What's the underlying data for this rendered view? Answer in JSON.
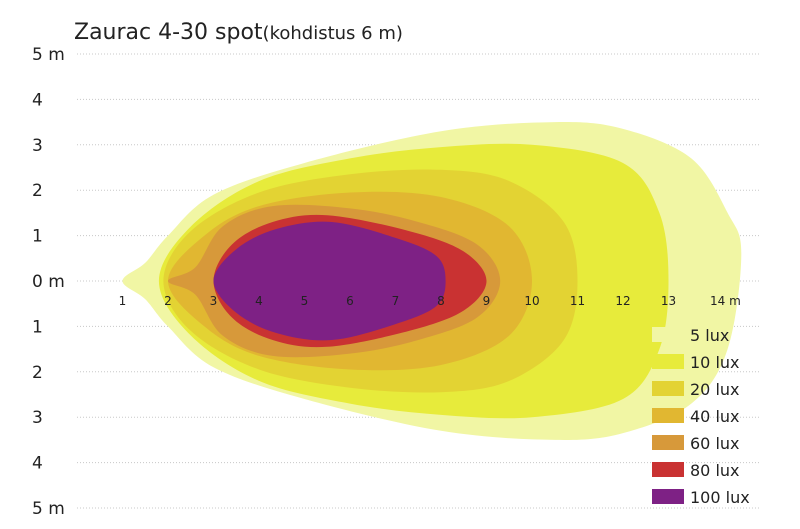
{
  "chart_data": {
    "type": "area",
    "title": "Zaurac 4-30 spot",
    "subtitle": "(kohdistus 6 m)",
    "x_tick_labels": [
      "1",
      "2",
      "3",
      "4",
      "5",
      "6",
      "7",
      "8",
      "9",
      "10",
      "11",
      "12",
      "13",
      "14 m"
    ],
    "x_ticks": [
      1,
      2,
      3,
      4,
      5,
      6,
      7,
      8,
      9,
      10,
      11,
      12,
      13,
      14
    ],
    "y_tick_labels": [
      "5 m",
      "4",
      "3",
      "2",
      "1",
      "0 m",
      "1",
      "2",
      "3",
      "4",
      "5 m"
    ],
    "y_ticks": [
      5,
      4,
      3,
      2,
      1,
      0,
      -1,
      -2,
      -3,
      -4,
      -5
    ],
    "xlim": [
      0,
      14.5
    ],
    "ylim": [
      -5,
      5
    ],
    "grid": true,
    "legend_position": "bottom-right",
    "series": [
      {
        "name": "5 lux",
        "color": "#f1f6a4",
        "upper": [
          [
            1,
            0
          ],
          [
            1.5,
            0.4
          ],
          [
            2,
            1
          ],
          [
            3,
            1.9
          ],
          [
            5,
            2.6
          ],
          [
            8,
            3.3
          ],
          [
            10.5,
            3.5
          ],
          [
            12,
            3.35
          ],
          [
            13.5,
            2.7
          ],
          [
            14.3,
            1.5
          ],
          [
            14.6,
            0.6
          ]
        ],
        "lower": [
          [
            1,
            0
          ],
          [
            1.5,
            -0.4
          ],
          [
            2,
            -1
          ],
          [
            3,
            -1.9
          ],
          [
            5,
            -2.6
          ],
          [
            8,
            -3.3
          ],
          [
            10.5,
            -3.5
          ],
          [
            12,
            -3.35
          ],
          [
            13.5,
            -2.7
          ],
          [
            14.3,
            -1.5
          ],
          [
            14.6,
            -0.6
          ]
        ]
      },
      {
        "name": "10 lux",
        "color": "#e7eb3b",
        "upper": [
          [
            1.8,
            0
          ],
          [
            2.5,
            1.2
          ],
          [
            4,
            2.2
          ],
          [
            6,
            2.7
          ],
          [
            8,
            2.95
          ],
          [
            10,
            3
          ],
          [
            12,
            2.6
          ],
          [
            12.8,
            1.5
          ],
          [
            13,
            0
          ]
        ],
        "lower": [
          [
            1.8,
            0
          ],
          [
            2.5,
            -1.2
          ],
          [
            4,
            -2.2
          ],
          [
            6,
            -2.7
          ],
          [
            8,
            -2.95
          ],
          [
            10,
            -3
          ],
          [
            12,
            -2.6
          ],
          [
            12.8,
            -1.5
          ],
          [
            13,
            0
          ]
        ]
      },
      {
        "name": "20 lux",
        "color": "#e3d333",
        "upper": [
          [
            1.9,
            0
          ],
          [
            2.5,
            1.1
          ],
          [
            4,
            1.95
          ],
          [
            6,
            2.35
          ],
          [
            8,
            2.45
          ],
          [
            9.5,
            2.2
          ],
          [
            10.7,
            1.3
          ],
          [
            11,
            0
          ]
        ],
        "lower": [
          [
            1.9,
            0
          ],
          [
            2.5,
            -1.1
          ],
          [
            4,
            -1.95
          ],
          [
            6,
            -2.35
          ],
          [
            8,
            -2.45
          ],
          [
            9.5,
            -2.2
          ],
          [
            10.7,
            -1.3
          ],
          [
            11,
            0
          ]
        ]
      },
      {
        "name": "40 lux",
        "color": "#e1b731",
        "upper": [
          [
            2,
            0
          ],
          [
            2.8,
            1
          ],
          [
            4,
            1.65
          ],
          [
            6,
            1.95
          ],
          [
            8,
            1.85
          ],
          [
            9.5,
            1.2
          ],
          [
            10,
            0
          ]
        ],
        "lower": [
          [
            2,
            0
          ],
          [
            2.8,
            -1
          ],
          [
            4,
            -1.65
          ],
          [
            6,
            -1.95
          ],
          [
            8,
            -1.85
          ],
          [
            9.5,
            -1.2
          ],
          [
            10,
            0
          ]
        ]
      },
      {
        "name": "60 lux",
        "color": "#d7993a",
        "upper": [
          [
            2,
            0
          ],
          [
            2.6,
            0.3
          ],
          [
            3.2,
            1.2
          ],
          [
            4.3,
            1.65
          ],
          [
            6,
            1.6
          ],
          [
            7.5,
            1.3
          ],
          [
            8.8,
            0.8
          ],
          [
            9.3,
            0
          ]
        ],
        "lower": [
          [
            2,
            0
          ],
          [
            2.6,
            -0.3
          ],
          [
            3.2,
            -1.2
          ],
          [
            4.3,
            -1.65
          ],
          [
            6,
            -1.6
          ],
          [
            7.5,
            -1.3
          ],
          [
            8.8,
            -0.8
          ],
          [
            9.3,
            0
          ]
        ]
      },
      {
        "name": "80 lux",
        "color": "#c93232",
        "upper": [
          [
            3,
            0
          ],
          [
            3.4,
            0.8
          ],
          [
            4.3,
            1.3
          ],
          [
            5.5,
            1.45
          ],
          [
            7.3,
            1.1
          ],
          [
            8.5,
            0.65
          ],
          [
            9,
            0
          ]
        ],
        "lower": [
          [
            3,
            0
          ],
          [
            3.4,
            -0.8
          ],
          [
            4.3,
            -1.3
          ],
          [
            5.5,
            -1.45
          ],
          [
            7.3,
            -1.1
          ],
          [
            8.5,
            -0.65
          ],
          [
            9,
            0
          ]
        ]
      },
      {
        "name": "100 lux",
        "color": "#7e2185",
        "upper": [
          [
            3,
            0
          ],
          [
            3.5,
            0.7
          ],
          [
            4.4,
            1.15
          ],
          [
            5.6,
            1.3
          ],
          [
            7,
            0.95
          ],
          [
            7.9,
            0.55
          ],
          [
            8.1,
            0
          ]
        ],
        "lower": [
          [
            3,
            0
          ],
          [
            3.5,
            -0.7
          ],
          [
            4.4,
            -1.15
          ],
          [
            5.6,
            -1.3
          ],
          [
            7,
            -0.95
          ],
          [
            7.9,
            -0.55
          ],
          [
            8.1,
            0
          ]
        ]
      }
    ]
  }
}
